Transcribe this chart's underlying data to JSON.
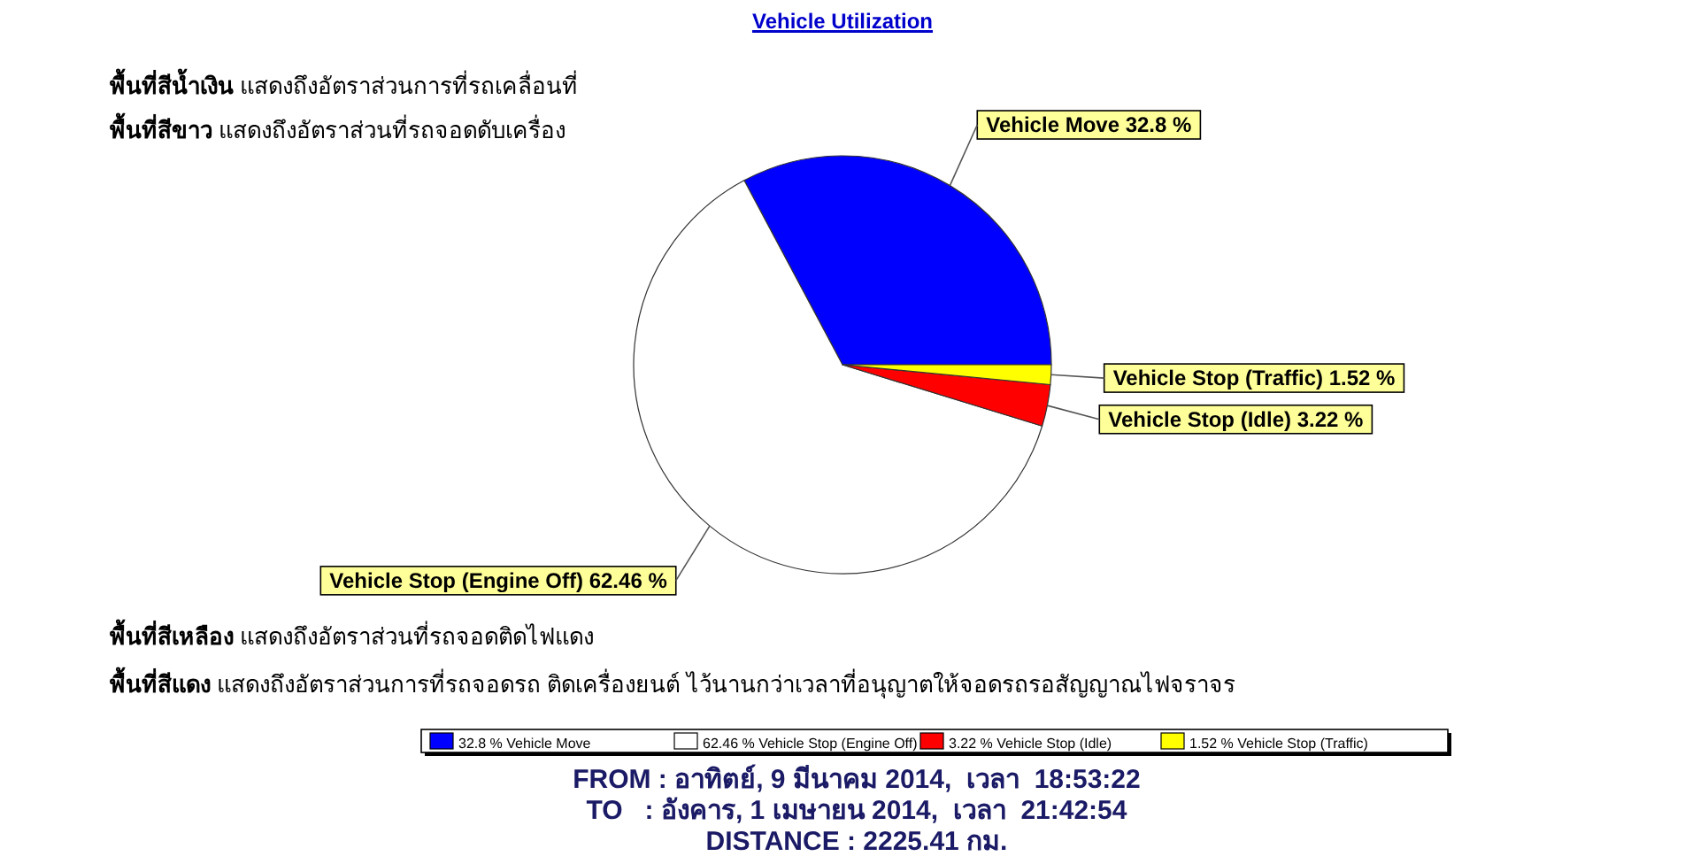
{
  "chart_data": {
    "type": "pie",
    "title": "Vehicle Utilization",
    "categories": [
      "32.8 % Vehicle Move",
      "62.46 % Vehicle Stop (Engine Off)",
      "3.22 % Vehicle Stop (Idle)",
      "1.52 % Vehicle Stop (Traffic)"
    ],
    "values": [
      32.8,
      62.46,
      3.22,
      1.52
    ],
    "colors": [
      "#0000ff",
      "#ffffff",
      "#ff0000",
      "#ffff00"
    ],
    "value_labels": [
      "Vehicle Move 32.8 %",
      "Vehicle Stop (Engine Off) 62.46 %",
      "Vehicle Stop (Idle) 3.22 %",
      "Vehicle Stop (Traffic) 1.52 %"
    ],
    "legend": "bottom",
    "annotations": [
      "พื้นที่สีน้ำเงิน แสดงถึงอัตราส่วนการที่รถเคลื่อนที่",
      "พื้นที่สีขาว แสดงถึงอัตราส่วนที่รถจอดดับเครื่อง",
      "พื้นที่สีเหลือง แสดงถึงอัตราส่วนที่รถจอดติดไฟแดง",
      "พื้นที่สีแดง แสดงถึงอัตราส่วนการที่รถจอดรถ ติดเครื่องยนต์ ไว้นานกว่าเวลาที่อนุญาตให้จอดรถรอสัญญาณไฟจราจร",
      "FROM : อาทิตย์, 9 มีนาคม 2014,  เวลา  18:53:22",
      "TO   : อังคาร, 1 เมษายน 2014,  เวลา  21:42:54",
      "DISTANCE : 2225.41 กม."
    ]
  }
}
